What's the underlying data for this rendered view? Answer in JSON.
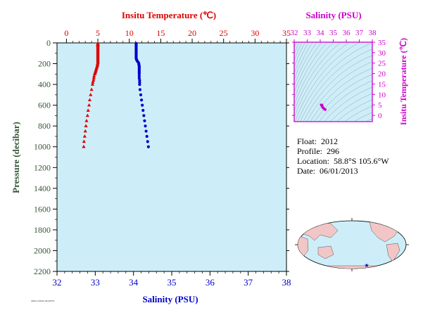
{
  "colors": {
    "temperature": "#dd0000",
    "salinity": "#0000cc",
    "ts_panel": "#cc00cc",
    "pressure_axis": "#335533",
    "plot_bg": "#cdeef8"
  },
  "chart_data": [
    {
      "type": "scatter",
      "title": "",
      "top_axis_label": "Insitu Temperature (℃)",
      "bottom_axis_label": "Salinity (PSU)",
      "ylabel": "Pressure (decibar)",
      "temp_ticks": [
        "0",
        "5",
        "10",
        "15",
        "20",
        "25",
        "30",
        "35"
      ],
      "sal_ticks": [
        "32",
        "33",
        "34",
        "35",
        "36",
        "37",
        "38"
      ],
      "pressure_ticks": [
        "0",
        "200",
        "400",
        "600",
        "800",
        "1000",
        "1200",
        "1400",
        "1600",
        "1800",
        "2000",
        "2200"
      ],
      "temp_range": [
        -1.5,
        35
      ],
      "sal_range": [
        32,
        38
      ],
      "pressure_range": [
        0,
        2200
      ],
      "y_inverted": true,
      "grid": false,
      "series": [
        {
          "axis": "temperature",
          "marker": "triangle",
          "points": [
            {
              "p": 5,
              "v": 5.0
            },
            {
              "p": 10,
              "v": 5.0
            },
            {
              "p": 15,
              "v": 5.0
            },
            {
              "p": 20,
              "v": 5.0
            },
            {
              "p": 25,
              "v": 5.0
            },
            {
              "p": 30,
              "v": 5.0
            },
            {
              "p": 40,
              "v": 5.0
            },
            {
              "p": 50,
              "v": 5.0
            },
            {
              "p": 60,
              "v": 5.0
            },
            {
              "p": 70,
              "v": 5.0
            },
            {
              "p": 80,
              "v": 5.0
            },
            {
              "p": 90,
              "v": 5.0
            },
            {
              "p": 100,
              "v": 5.0
            },
            {
              "p": 110,
              "v": 5.0
            },
            {
              "p": 120,
              "v": 5.0
            },
            {
              "p": 130,
              "v": 5.0
            },
            {
              "p": 140,
              "v": 5.0
            },
            {
              "p": 150,
              "v": 5.0
            },
            {
              "p": 160,
              "v": 5.0
            },
            {
              "p": 170,
              "v": 5.0
            },
            {
              "p": 180,
              "v": 5.0
            },
            {
              "p": 190,
              "v": 5.0
            },
            {
              "p": 200,
              "v": 4.95
            },
            {
              "p": 210,
              "v": 4.95
            },
            {
              "p": 220,
              "v": 4.9
            },
            {
              "p": 230,
              "v": 4.85
            },
            {
              "p": 240,
              "v": 4.8
            },
            {
              "p": 250,
              "v": 4.75
            },
            {
              "p": 260,
              "v": 4.7
            },
            {
              "p": 270,
              "v": 4.65
            },
            {
              "p": 280,
              "v": 4.6
            },
            {
              "p": 290,
              "v": 4.55
            },
            {
              "p": 300,
              "v": 4.5
            },
            {
              "p": 320,
              "v": 4.4
            },
            {
              "p": 340,
              "v": 4.35
            },
            {
              "p": 360,
              "v": 4.3
            },
            {
              "p": 380,
              "v": 4.2
            },
            {
              "p": 400,
              "v": 4.15
            },
            {
              "p": 450,
              "v": 4.0
            },
            {
              "p": 500,
              "v": 3.85
            },
            {
              "p": 550,
              "v": 3.7
            },
            {
              "p": 600,
              "v": 3.6
            },
            {
              "p": 650,
              "v": 3.45
            },
            {
              "p": 700,
              "v": 3.35
            },
            {
              "p": 750,
              "v": 3.2
            },
            {
              "p": 800,
              "v": 3.1
            },
            {
              "p": 850,
              "v": 3.0
            },
            {
              "p": 900,
              "v": 2.9
            },
            {
              "p": 950,
              "v": 2.8
            },
            {
              "p": 1000,
              "v": 2.75
            }
          ]
        },
        {
          "axis": "salinity",
          "marker": "circle",
          "points": [
            {
              "p": 5,
              "v": 34.07
            },
            {
              "p": 10,
              "v": 34.07
            },
            {
              "p": 15,
              "v": 34.07
            },
            {
              "p": 20,
              "v": 34.07
            },
            {
              "p": 25,
              "v": 34.07
            },
            {
              "p": 30,
              "v": 34.07
            },
            {
              "p": 40,
              "v": 34.07
            },
            {
              "p": 50,
              "v": 34.07
            },
            {
              "p": 60,
              "v": 34.07
            },
            {
              "p": 70,
              "v": 34.07
            },
            {
              "p": 80,
              "v": 34.07
            },
            {
              "p": 90,
              "v": 34.07
            },
            {
              "p": 100,
              "v": 34.07
            },
            {
              "p": 110,
              "v": 34.07
            },
            {
              "p": 120,
              "v": 34.07
            },
            {
              "p": 130,
              "v": 34.07
            },
            {
              "p": 140,
              "v": 34.07
            },
            {
              "p": 150,
              "v": 34.07
            },
            {
              "p": 160,
              "v": 34.08
            },
            {
              "p": 170,
              "v": 34.09
            },
            {
              "p": 180,
              "v": 34.11
            },
            {
              "p": 190,
              "v": 34.13
            },
            {
              "p": 200,
              "v": 34.14
            },
            {
              "p": 210,
              "v": 34.14
            },
            {
              "p": 220,
              "v": 34.15
            },
            {
              "p": 230,
              "v": 34.15
            },
            {
              "p": 240,
              "v": 34.15
            },
            {
              "p": 250,
              "v": 34.15
            },
            {
              "p": 260,
              "v": 34.15
            },
            {
              "p": 270,
              "v": 34.15
            },
            {
              "p": 280,
              "v": 34.15
            },
            {
              "p": 290,
              "v": 34.15
            },
            {
              "p": 300,
              "v": 34.15
            },
            {
              "p": 320,
              "v": 34.15
            },
            {
              "p": 340,
              "v": 34.15
            },
            {
              "p": 360,
              "v": 34.16
            },
            {
              "p": 380,
              "v": 34.16
            },
            {
              "p": 400,
              "v": 34.16
            },
            {
              "p": 450,
              "v": 34.17
            },
            {
              "p": 500,
              "v": 34.19
            },
            {
              "p": 550,
              "v": 34.21
            },
            {
              "p": 600,
              "v": 34.23
            },
            {
              "p": 650,
              "v": 34.25
            },
            {
              "p": 700,
              "v": 34.27
            },
            {
              "p": 750,
              "v": 34.29
            },
            {
              "p": 800,
              "v": 34.31
            },
            {
              "p": 850,
              "v": 34.33
            },
            {
              "p": 900,
              "v": 34.35
            },
            {
              "p": 950,
              "v": 34.37
            },
            {
              "p": 1000,
              "v": 34.39
            }
          ]
        }
      ]
    },
    {
      "type": "scatter",
      "title": "",
      "xlabel": "Salinity (PSU)",
      "ylabel": "Insitu Temperature (℃)",
      "x_ticks": [
        "32",
        "33",
        "34",
        "35",
        "36",
        "37",
        "38"
      ],
      "y_ticks": [
        "0",
        "5",
        "10",
        "15",
        "20",
        "25",
        "30",
        "35"
      ],
      "xlim": [
        32,
        38
      ],
      "ylim": [
        -3,
        35
      ],
      "grid": false,
      "density_contours": true,
      "points": [
        {
          "s": 34.07,
          "t": 5.0
        },
        {
          "s": 34.09,
          "t": 5.0
        },
        {
          "s": 34.13,
          "t": 4.95
        },
        {
          "s": 34.15,
          "t": 4.8
        },
        {
          "s": 34.15,
          "t": 4.6
        },
        {
          "s": 34.15,
          "t": 4.4
        },
        {
          "s": 34.16,
          "t": 4.15
        },
        {
          "s": 34.17,
          "t": 4.0
        },
        {
          "s": 34.21,
          "t": 3.7
        },
        {
          "s": 34.25,
          "t": 3.45
        },
        {
          "s": 34.29,
          "t": 3.2
        },
        {
          "s": 34.33,
          "t": 3.0
        },
        {
          "s": 34.37,
          "t": 2.8
        },
        {
          "s": 34.39,
          "t": 2.75
        }
      ]
    }
  ],
  "info": {
    "float_label": "Float:",
    "float_value": "2012",
    "profile_label": "Profile:",
    "profile_value": "296",
    "location_label": "Location:",
    "location_value": "58.8°S  105.6°W",
    "date_label": "Date:",
    "date_value": "06/01/2013"
  },
  "footer_text": "ARGO-CHINA  2013/07/0"
}
